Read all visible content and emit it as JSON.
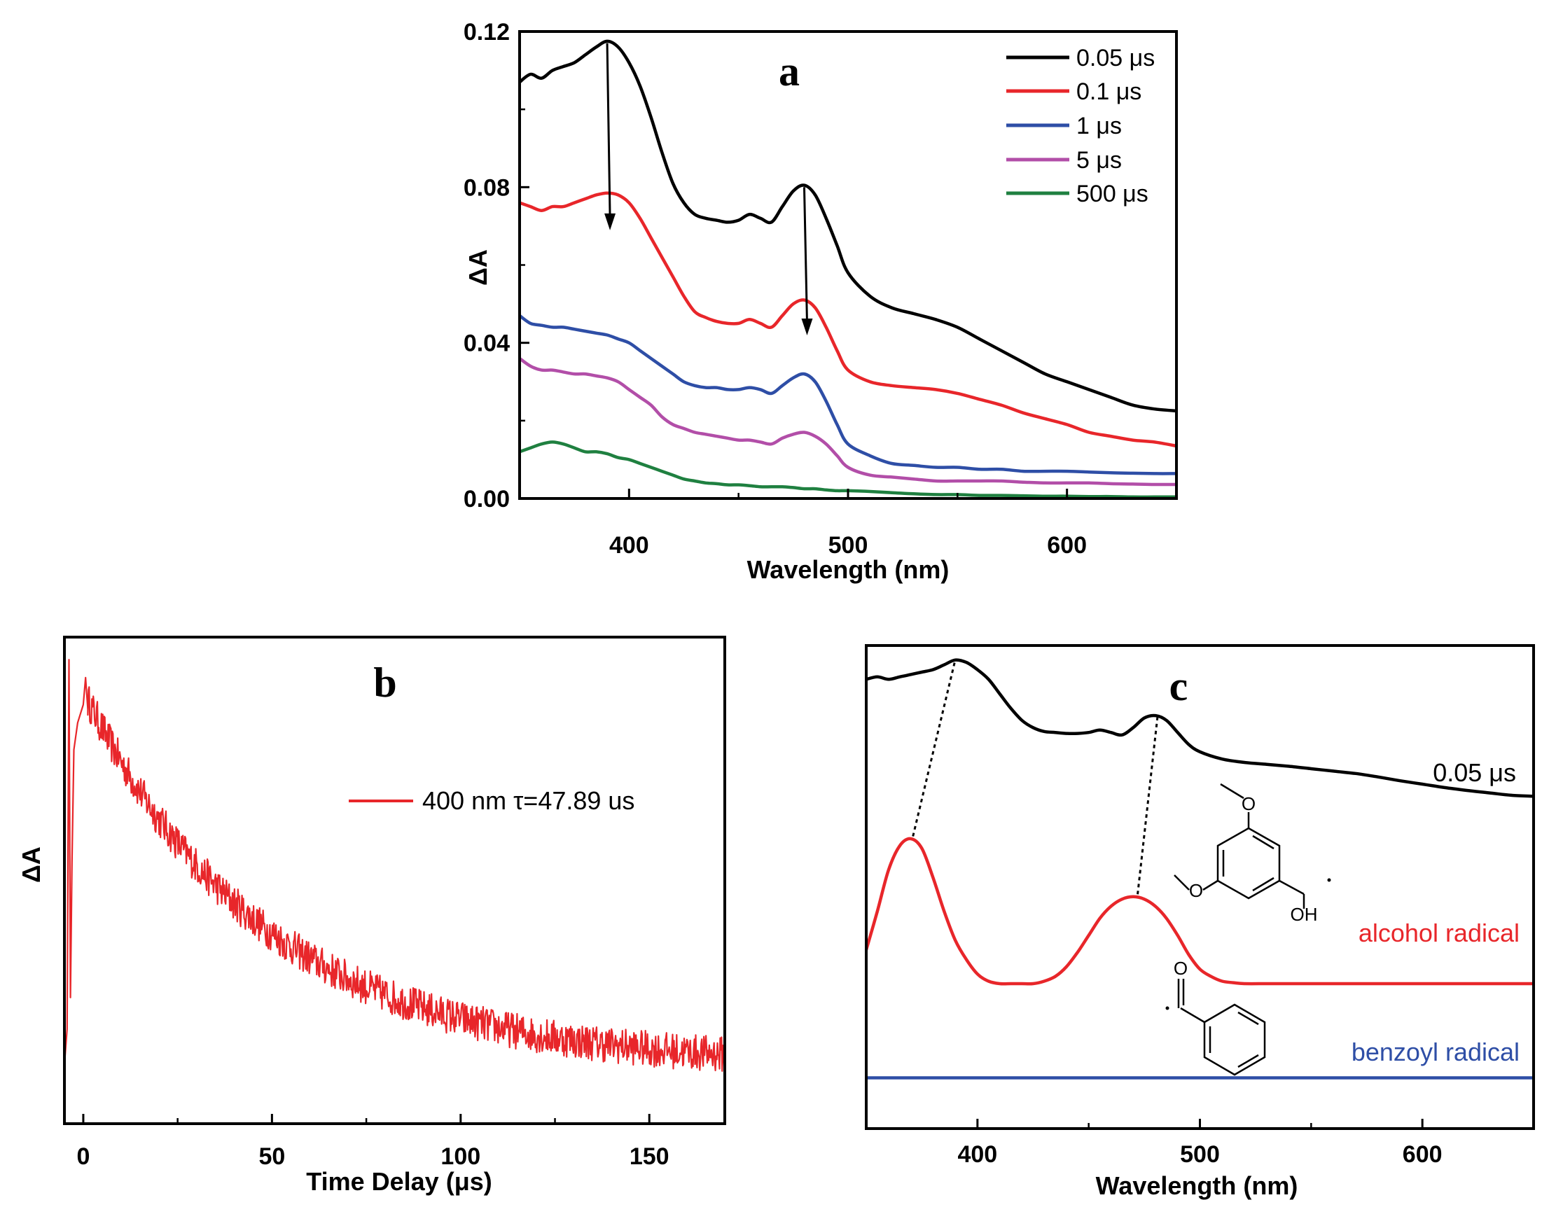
{
  "chart_data": [
    {
      "panel": "a",
      "type": "line",
      "title": "a",
      "xlabel": "Wavelength (nm)",
      "ylabel": "ΔA",
      "xlim": [
        350,
        650
      ],
      "ylim": [
        0.0,
        0.12
      ],
      "xticks": [
        400,
        500,
        600
      ],
      "xtick_labels": [
        "400",
        "500",
        "600"
      ],
      "yticks": [
        0.0,
        0.04,
        0.08,
        0.12
      ],
      "ytick_labels": [
        "0.00",
        "0.04",
        "0.08",
        "0.12"
      ],
      "legend_position": "top-right",
      "arrows": [
        {
          "x": 390,
          "from": 0.117,
          "to": 0.07
        },
        {
          "x": 480,
          "from": 0.08,
          "to": 0.043
        }
      ],
      "series": [
        {
          "name": "0.05 μs",
          "color": "#000000",
          "x": [
            350,
            355,
            360,
            365,
            370,
            375,
            380,
            385,
            390,
            395,
            400,
            405,
            410,
            415,
            420,
            425,
            430,
            435,
            440,
            445,
            450,
            455,
            460,
            465,
            470,
            475,
            480,
            485,
            490,
            495,
            500,
            510,
            520,
            530,
            540,
            550,
            560,
            570,
            580,
            590,
            600,
            610,
            620,
            630,
            640,
            650
          ],
          "y": [
            0.107,
            0.109,
            0.108,
            0.11,
            0.111,
            0.112,
            0.114,
            0.116,
            0.1175,
            0.116,
            0.112,
            0.106,
            0.098,
            0.089,
            0.081,
            0.076,
            0.073,
            0.072,
            0.0715,
            0.071,
            0.0715,
            0.073,
            0.072,
            0.071,
            0.075,
            0.079,
            0.0805,
            0.078,
            0.072,
            0.065,
            0.058,
            0.052,
            0.049,
            0.0475,
            0.046,
            0.044,
            0.041,
            0.038,
            0.035,
            0.032,
            0.03,
            0.028,
            0.026,
            0.024,
            0.023,
            0.0225
          ]
        },
        {
          "name": "0.1 μs",
          "color": "#e8262a",
          "x": [
            350,
            355,
            360,
            365,
            370,
            375,
            380,
            385,
            390,
            395,
            400,
            405,
            410,
            415,
            420,
            425,
            430,
            435,
            440,
            445,
            450,
            455,
            460,
            465,
            470,
            475,
            480,
            485,
            490,
            495,
            500,
            510,
            520,
            530,
            540,
            550,
            560,
            570,
            580,
            590,
            600,
            610,
            620,
            630,
            640,
            650
          ],
          "y": [
            0.076,
            0.075,
            0.074,
            0.075,
            0.075,
            0.076,
            0.077,
            0.078,
            0.0785,
            0.078,
            0.076,
            0.072,
            0.067,
            0.062,
            0.057,
            0.052,
            0.048,
            0.0465,
            0.0455,
            0.045,
            0.045,
            0.046,
            0.045,
            0.044,
            0.047,
            0.05,
            0.051,
            0.049,
            0.044,
            0.038,
            0.033,
            0.03,
            0.029,
            0.0285,
            0.028,
            0.027,
            0.0255,
            0.024,
            0.022,
            0.0205,
            0.019,
            0.017,
            0.016,
            0.015,
            0.0145,
            0.0135
          ]
        },
        {
          "name": "1 μs",
          "color": "#2e4ea6",
          "x": [
            350,
            355,
            360,
            365,
            370,
            375,
            380,
            385,
            390,
            395,
            400,
            405,
            410,
            415,
            420,
            425,
            430,
            435,
            440,
            445,
            450,
            455,
            460,
            465,
            470,
            475,
            480,
            485,
            490,
            495,
            500,
            510,
            520,
            530,
            540,
            550,
            560,
            570,
            580,
            590,
            600,
            610,
            620,
            630,
            640,
            650
          ],
          "y": [
            0.047,
            0.045,
            0.0445,
            0.044,
            0.044,
            0.0435,
            0.043,
            0.0425,
            0.042,
            0.041,
            0.04,
            0.038,
            0.036,
            0.034,
            0.032,
            0.03,
            0.029,
            0.0285,
            0.0285,
            0.028,
            0.028,
            0.0285,
            0.028,
            0.027,
            0.029,
            0.031,
            0.032,
            0.03,
            0.025,
            0.019,
            0.014,
            0.011,
            0.009,
            0.0085,
            0.008,
            0.008,
            0.0075,
            0.0075,
            0.007,
            0.007,
            0.007,
            0.0068,
            0.0066,
            0.0065,
            0.0064,
            0.0064
          ]
        },
        {
          "name": "5 μs",
          "color": "#b24ea8",
          "x": [
            350,
            355,
            360,
            365,
            370,
            375,
            380,
            385,
            390,
            395,
            400,
            405,
            410,
            415,
            420,
            425,
            430,
            435,
            440,
            445,
            450,
            455,
            460,
            465,
            470,
            475,
            480,
            485,
            490,
            495,
            500,
            510,
            520,
            530,
            540,
            550,
            560,
            570,
            580,
            590,
            600,
            610,
            620,
            630,
            640,
            650
          ],
          "y": [
            0.036,
            0.034,
            0.033,
            0.033,
            0.0325,
            0.032,
            0.032,
            0.0315,
            0.031,
            0.03,
            0.028,
            0.026,
            0.024,
            0.021,
            0.019,
            0.018,
            0.017,
            0.0165,
            0.016,
            0.0155,
            0.015,
            0.015,
            0.0145,
            0.014,
            0.0155,
            0.0165,
            0.017,
            0.016,
            0.014,
            0.011,
            0.008,
            0.006,
            0.0055,
            0.005,
            0.0045,
            0.0045,
            0.0045,
            0.0045,
            0.0042,
            0.004,
            0.004,
            0.004,
            0.0038,
            0.0037,
            0.0036,
            0.0036
          ]
        },
        {
          "name": "500 μs",
          "color": "#1f8040",
          "x": [
            350,
            355,
            360,
            365,
            370,
            375,
            380,
            385,
            390,
            395,
            400,
            405,
            410,
            415,
            420,
            425,
            430,
            435,
            440,
            445,
            450,
            455,
            460,
            465,
            470,
            475,
            480,
            485,
            490,
            495,
            500,
            510,
            520,
            530,
            540,
            550,
            560,
            570,
            580,
            590,
            600,
            610,
            620,
            630,
            640,
            650
          ],
          "y": [
            0.012,
            0.013,
            0.014,
            0.0145,
            0.014,
            0.013,
            0.012,
            0.012,
            0.0115,
            0.0105,
            0.01,
            0.009,
            0.008,
            0.007,
            0.006,
            0.005,
            0.0045,
            0.004,
            0.0038,
            0.0035,
            0.0035,
            0.0033,
            0.003,
            0.003,
            0.003,
            0.0028,
            0.0025,
            0.0025,
            0.0022,
            0.002,
            0.002,
            0.0018,
            0.0015,
            0.0012,
            0.001,
            0.001,
            0.0008,
            0.0008,
            0.0007,
            0.0006,
            0.0006,
            0.0005,
            0.0005,
            0.0004,
            0.0004,
            0.0004
          ]
        }
      ]
    },
    {
      "panel": "b",
      "type": "line",
      "title": "b",
      "xlabel": "Time Delay (μs)",
      "ylabel": "ΔA",
      "xlim": [
        -5,
        170
      ],
      "ylim": [
        -0.03,
        1.05
      ],
      "xticks": [
        0,
        50,
        100,
        150
      ],
      "xtick_labels": [
        "0",
        "50",
        "100",
        "150"
      ],
      "yticks_shown": false,
      "legend_position": "upper-right",
      "series": [
        {
          "name": "400 nm τ=47.89 us",
          "color": "#e8262a",
          "model": "exponential_decay",
          "tau": 47.89,
          "amplitude": 0.83,
          "offset": 0.1,
          "noise": 0.04,
          "x": [
            -5,
            -4,
            -3,
            -2,
            -1,
            0,
            2,
            5,
            10,
            15,
            20,
            25,
            30,
            40,
            50,
            60,
            70,
            80,
            90,
            100,
            110,
            120,
            130,
            140,
            150,
            160,
            170
          ],
          "y": [
            0.1,
            0.13,
            1.0,
            0.4,
            0.86,
            0.92,
            0.91,
            0.88,
            0.77,
            0.72,
            0.65,
            0.59,
            0.55,
            0.44,
            0.37,
            0.32,
            0.27,
            0.23,
            0.2,
            0.18,
            0.17,
            0.15,
            0.14,
            0.13,
            0.125,
            0.115,
            0.1
          ]
        }
      ]
    },
    {
      "panel": "c",
      "type": "line",
      "title": "c",
      "xlabel": "Wavelength (nm)",
      "ylabel": "",
      "xlim": [
        350,
        650
      ],
      "ylim": [
        0,
        1
      ],
      "xticks": [
        400,
        500,
        600
      ],
      "xtick_labels": [
        "400",
        "500",
        "600"
      ],
      "yticks_shown": false,
      "series": [
        {
          "name": "0.05 μs",
          "label": "0.05 μs",
          "color": "#000000",
          "x": [
            350,
            355,
            360,
            365,
            370,
            375,
            380,
            385,
            390,
            395,
            400,
            405,
            410,
            415,
            420,
            425,
            430,
            435,
            440,
            445,
            450,
            455,
            460,
            465,
            470,
            475,
            480,
            485,
            490,
            495,
            500,
            510,
            520,
            530,
            540,
            550,
            560,
            570,
            580,
            590,
            600,
            610,
            620,
            630,
            640,
            650
          ],
          "y": [
            0.93,
            0.935,
            0.93,
            0.935,
            0.94,
            0.945,
            0.95,
            0.96,
            0.97,
            0.965,
            0.95,
            0.93,
            0.9,
            0.87,
            0.845,
            0.83,
            0.822,
            0.82,
            0.818,
            0.818,
            0.82,
            0.825,
            0.82,
            0.815,
            0.83,
            0.85,
            0.855,
            0.845,
            0.82,
            0.795,
            0.78,
            0.765,
            0.758,
            0.754,
            0.75,
            0.745,
            0.74,
            0.735,
            0.728,
            0.72,
            0.713,
            0.706,
            0.7,
            0.695,
            0.69,
            0.688
          ]
        },
        {
          "name": "alcohol radical",
          "label": "alcohol radical",
          "color": "#e8262a",
          "x": [
            350,
            355,
            360,
            365,
            370,
            375,
            380,
            385,
            390,
            395,
            400,
            405,
            410,
            415,
            420,
            425,
            430,
            435,
            440,
            445,
            450,
            455,
            460,
            465,
            470,
            475,
            480,
            485,
            490,
            495,
            500,
            505,
            510,
            515,
            520,
            530,
            540,
            550,
            560,
            570,
            580,
            590,
            600,
            610,
            620,
            630,
            640,
            650
          ],
          "y": [
            0.37,
            0.45,
            0.535,
            0.585,
            0.6,
            0.58,
            0.52,
            0.45,
            0.39,
            0.35,
            0.32,
            0.305,
            0.3,
            0.3,
            0.3,
            0.3,
            0.305,
            0.315,
            0.335,
            0.365,
            0.4,
            0.435,
            0.46,
            0.475,
            0.48,
            0.475,
            0.46,
            0.435,
            0.4,
            0.36,
            0.33,
            0.315,
            0.305,
            0.302,
            0.3,
            0.3,
            0.3,
            0.3,
            0.3,
            0.3,
            0.3,
            0.3,
            0.3,
            0.3,
            0.3,
            0.3,
            0.3,
            0.3
          ]
        },
        {
          "name": "benzoyl radical",
          "label": "benzoyl radical",
          "color": "#2e4ea6",
          "x": [
            350,
            650
          ],
          "y": [
            0.105,
            0.105
          ]
        }
      ],
      "dotted_connectors": [
        {
          "from": [
            371,
            0.605
          ],
          "to": [
            390,
            0.97
          ]
        },
        {
          "from": [
            472,
            0.485
          ],
          "to": [
            481,
            0.855
          ]
        }
      ],
      "molecule_labels": [
        "OH",
        "O"
      ]
    }
  ]
}
